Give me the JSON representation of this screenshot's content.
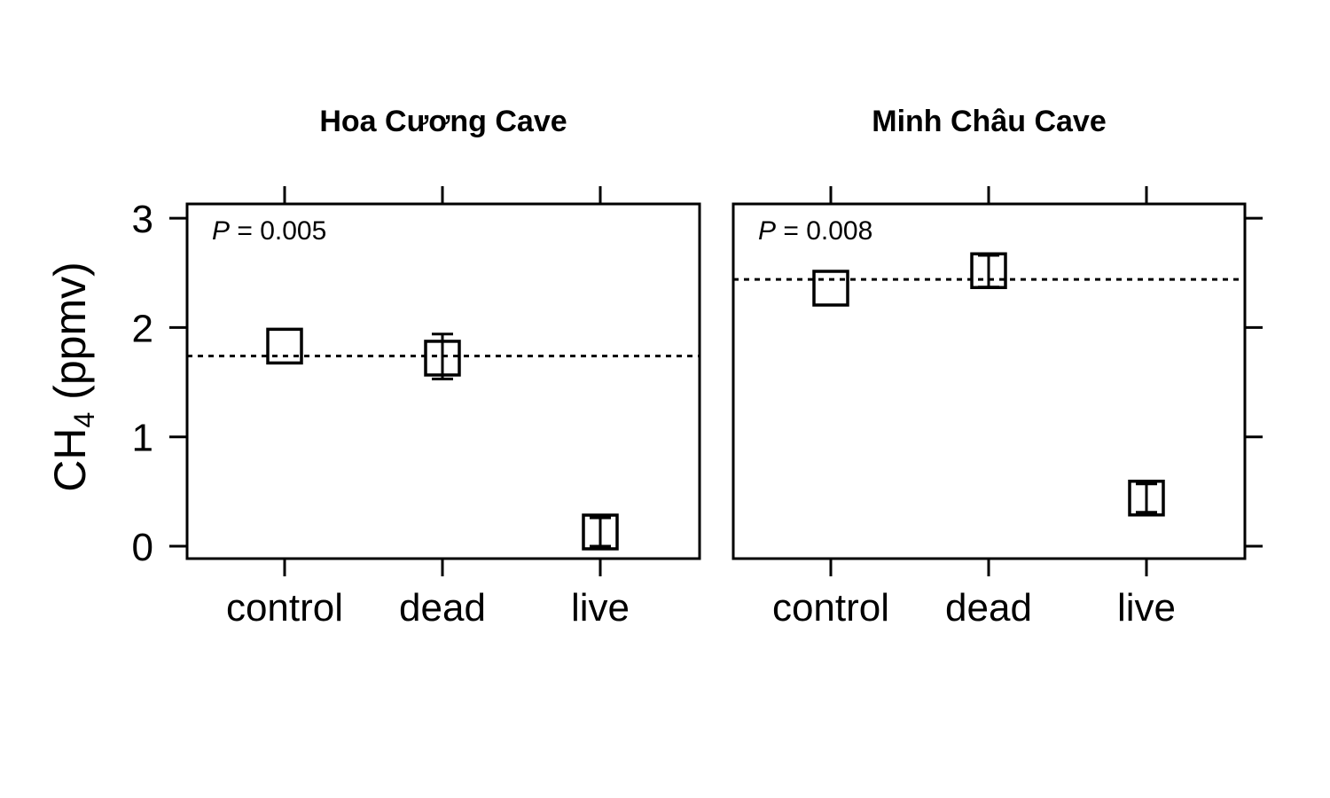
{
  "chart_data": [
    {
      "type": "scatter",
      "title": "Hoa Cương Cave",
      "categories": [
        "control",
        "dead",
        "live"
      ],
      "values": [
        1.83,
        1.72,
        0.13
      ],
      "error_low": [
        1.83,
        1.53,
        0.0
      ],
      "error_high": [
        1.83,
        1.94,
        0.26
      ],
      "reference_line": 1.74,
      "p_label": "P",
      "p_value": "= 0.005",
      "ylim": [
        -0.12,
        3.1
      ],
      "yticks": [
        0,
        1,
        2,
        3
      ]
    },
    {
      "type": "scatter",
      "title": "Minh Châu Cave",
      "categories": [
        "control",
        "dead",
        "live"
      ],
      "values": [
        2.36,
        2.52,
        0.44
      ],
      "error_low": [
        2.36,
        2.37,
        0.31
      ],
      "error_high": [
        2.36,
        2.66,
        0.57
      ],
      "reference_line": 2.44,
      "p_label": "P",
      "p_value": "= 0.008",
      "ylim": [
        -0.12,
        3.1
      ],
      "yticks": [
        0,
        1,
        2,
        3
      ]
    }
  ],
  "ylabel": {
    "main": "CH",
    "subscript": "4",
    "unit": " (ppmv)"
  }
}
